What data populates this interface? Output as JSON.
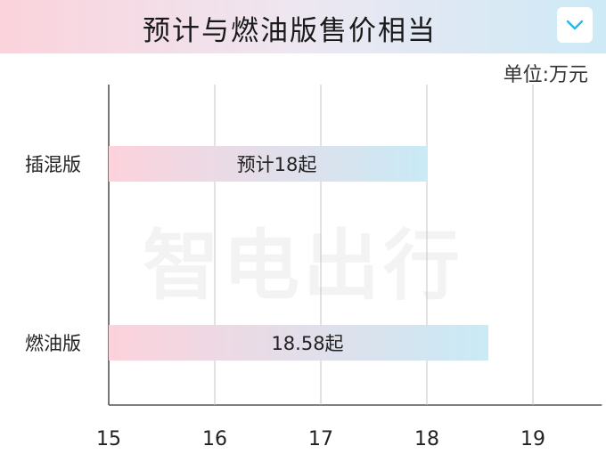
{
  "header": {
    "title": "预计与燃油版售价相当",
    "toggle_icon": "chevron-down-icon",
    "colors": {
      "banner_left": "#fbd3dc",
      "banner_right": "#cdeaf6",
      "chevron": "#27b9e6"
    }
  },
  "unit_label": "单位:万元",
  "watermark": "智电出行",
  "chart_data": {
    "type": "bar",
    "orientation": "horizontal",
    "categories": [
      "插混版",
      "燃油版"
    ],
    "values": [
      18,
      18.58
    ],
    "data_labels": [
      "预计18起",
      "18.58起"
    ],
    "xlim": [
      15,
      19.65
    ],
    "x_ticks": [
      "15",
      "16",
      "17",
      "18",
      "19"
    ],
    "grid": true,
    "bar_gradient": [
      "#fcd2dc",
      "#c9eaf6"
    ]
  }
}
